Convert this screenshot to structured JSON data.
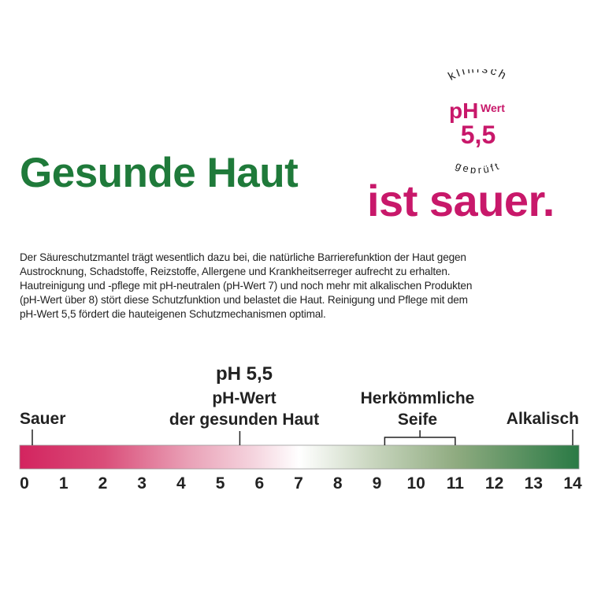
{
  "badge": {
    "top_arc": "klinisch",
    "bottom_arc": "geprüft",
    "ph": "pH",
    "wert": "Wert",
    "value": "5,5"
  },
  "headline": {
    "line1": "Gesunde Haut",
    "line2": "ist sauer."
  },
  "paragraph": [
    "Der Säureschutzmantel trägt wesentlich dazu bei, die natürliche Barrierefunktion der Haut gegen",
    "Austrocknung, Schadstoffe, Reizstoffe, Allergene und Krankheitserreger aufrecht zu erhalten.",
    "Hautreinigung und -pflege mit pH-neutralen (pH-Wert 7) und noch mehr mit alkalischen Produkten",
    "(pH-Wert über 8) stört diese Schutzfunktion und belastet die Haut. Reinigung und Pflege mit dem",
    "pH-Wert 5,5 fördert die hauteigenen Schutzmechanismen optimal."
  ],
  "scale": {
    "min": 0,
    "max": 14,
    "ticks": [
      "0",
      "1",
      "2",
      "3",
      "4",
      "5",
      "6",
      "7",
      "8",
      "9",
      "10",
      "11",
      "12",
      "13",
      "14"
    ],
    "left_label": "Sauer",
    "right_label": "Alkalisch",
    "healthy_value": 5.5,
    "healthy_title": "pH 5,5",
    "healthy_line1": "pH-Wert",
    "healthy_line2": "der gesunden Haut",
    "soap_range": [
      9.2,
      11
    ],
    "soap_line1": "Herkömmliche",
    "soap_line2": "Seife",
    "colors": {
      "acid": "#d3245f",
      "neutral": "#ffffff",
      "alkaline": "#2a7a45"
    }
  }
}
